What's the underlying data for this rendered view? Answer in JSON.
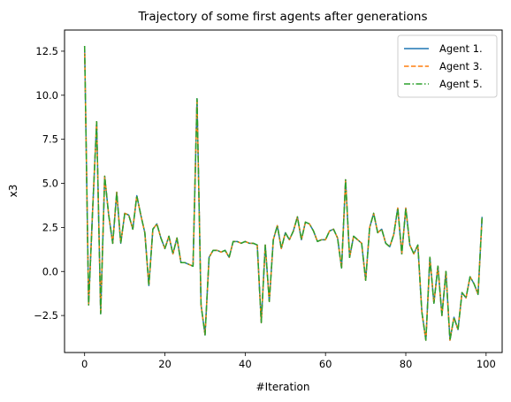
{
  "chart_data": {
    "type": "line",
    "title": "Trajectory of some first agents after generations",
    "xlabel": "#Iteration",
    "ylabel": "x3",
    "xlim": [
      -5,
      104
    ],
    "ylim": [
      -4.6,
      13.7
    ],
    "xticks": [
      0,
      20,
      40,
      60,
      80,
      100
    ],
    "xtick_labels": [
      "0",
      "20",
      "40",
      "60",
      "80",
      "100"
    ],
    "yticks": [
      -2.5,
      0.0,
      2.5,
      5.0,
      7.5,
      10.0,
      12.5
    ],
    "ytick_labels": [
      "−2.5",
      "0.0",
      "2.5",
      "5.0",
      "7.5",
      "10.0",
      "12.5"
    ],
    "grid": false,
    "legend_position": "top-right",
    "x": [
      0,
      1,
      2,
      3,
      4,
      5,
      6,
      7,
      8,
      9,
      10,
      11,
      12,
      13,
      14,
      15,
      16,
      17,
      18,
      19,
      20,
      21,
      22,
      23,
      24,
      25,
      26,
      27,
      28,
      29,
      30,
      31,
      32,
      33,
      34,
      35,
      36,
      37,
      38,
      39,
      40,
      41,
      42,
      43,
      44,
      45,
      46,
      47,
      48,
      49,
      50,
      51,
      52,
      53,
      54,
      55,
      56,
      57,
      58,
      59,
      60,
      61,
      62,
      63,
      64,
      65,
      66,
      67,
      68,
      69,
      70,
      71,
      72,
      73,
      74,
      75,
      76,
      77,
      78,
      79,
      80,
      81,
      82,
      83,
      84,
      85,
      86,
      87,
      88,
      89,
      90,
      91,
      92,
      93,
      94,
      95,
      96,
      97,
      98,
      99
    ],
    "series": [
      {
        "name": "Agent 1.",
        "color": "#1f77b4",
        "dash": "solid",
        "values": [
          12.8,
          -1.9,
          3.5,
          8.5,
          -2.4,
          5.4,
          3.2,
          1.6,
          4.5,
          1.6,
          3.3,
          3.2,
          2.4,
          4.3,
          3.2,
          2.2,
          -0.8,
          2.4,
          2.7,
          1.9,
          1.3,
          2.0,
          1.0,
          1.9,
          0.5,
          0.5,
          0.4,
          0.3,
          9.8,
          -1.9,
          -3.6,
          0.8,
          1.2,
          1.2,
          1.1,
          1.2,
          0.8,
          1.7,
          1.7,
          1.6,
          1.7,
          1.6,
          1.6,
          1.5,
          -2.9,
          1.5,
          -1.7,
          1.8,
          2.6,
          1.3,
          2.2,
          1.8,
          2.3,
          3.1,
          1.8,
          2.8,
          2.7,
          2.3,
          1.7,
          1.8,
          1.8,
          2.3,
          2.4,
          1.9,
          0.2,
          5.2,
          0.8,
          2.0,
          1.8,
          1.6,
          -0.5,
          2.5,
          3.3,
          2.2,
          2.4,
          1.6,
          1.4,
          2.1,
          3.6,
          1.0,
          3.6,
          1.5,
          1.0,
          1.5,
          -2.3,
          -3.9,
          0.8,
          -1.8,
          0.3,
          -2.5,
          0.0,
          -3.9,
          -2.6,
          -3.3,
          -1.2,
          -1.5,
          -0.3,
          -0.7,
          -1.3,
          3.1
        ]
      },
      {
        "name": "Agent 3.",
        "color": "#ff7f0e",
        "dash": "dashed",
        "values": [
          12.8,
          -1.9,
          3.5,
          8.5,
          -2.4,
          5.4,
          3.2,
          1.6,
          4.5,
          1.6,
          3.3,
          3.2,
          2.4,
          4.3,
          3.2,
          2.2,
          -0.8,
          2.4,
          2.7,
          1.9,
          1.3,
          2.0,
          1.0,
          1.9,
          0.5,
          0.5,
          0.4,
          0.3,
          9.8,
          -1.9,
          -3.6,
          0.8,
          1.2,
          1.2,
          1.1,
          1.2,
          0.8,
          1.7,
          1.7,
          1.6,
          1.7,
          1.6,
          1.6,
          1.5,
          -2.9,
          1.5,
          -1.7,
          1.8,
          2.6,
          1.3,
          2.2,
          1.8,
          2.3,
          3.1,
          1.8,
          2.8,
          2.7,
          2.3,
          1.7,
          1.8,
          1.8,
          2.3,
          2.4,
          1.9,
          0.2,
          5.2,
          0.8,
          2.0,
          1.8,
          1.6,
          -0.5,
          2.5,
          3.3,
          2.2,
          2.4,
          1.6,
          1.4,
          2.1,
          3.6,
          1.0,
          3.6,
          1.5,
          1.0,
          1.5,
          -2.3,
          -3.9,
          0.8,
          -1.8,
          0.3,
          -2.5,
          0.0,
          -3.9,
          -2.6,
          -3.3,
          -1.2,
          -1.5,
          -0.3,
          -0.7,
          -1.3,
          3.1
        ]
      },
      {
        "name": "Agent 5.",
        "color": "#2ca02c",
        "dash": "dashdot",
        "values": [
          12.8,
          -1.9,
          3.5,
          8.5,
          -2.4,
          5.4,
          3.2,
          1.6,
          4.5,
          1.6,
          3.3,
          3.2,
          2.4,
          4.3,
          3.2,
          2.2,
          -0.8,
          2.4,
          2.7,
          1.9,
          1.3,
          2.0,
          1.0,
          1.9,
          0.5,
          0.5,
          0.4,
          0.3,
          9.8,
          -1.9,
          -3.6,
          0.8,
          1.2,
          1.2,
          1.1,
          1.2,
          0.8,
          1.7,
          1.7,
          1.6,
          1.7,
          1.6,
          1.6,
          1.5,
          -2.9,
          1.5,
          -1.7,
          1.8,
          2.6,
          1.3,
          2.2,
          1.8,
          2.3,
          3.1,
          1.8,
          2.8,
          2.7,
          2.3,
          1.7,
          1.8,
          1.8,
          2.3,
          2.4,
          1.9,
          0.2,
          5.2,
          0.8,
          2.0,
          1.8,
          1.6,
          -0.5,
          2.5,
          3.3,
          2.2,
          2.4,
          1.6,
          1.4,
          2.1,
          3.6,
          1.0,
          3.6,
          1.5,
          1.0,
          1.5,
          -2.3,
          -3.9,
          0.8,
          -1.8,
          0.3,
          -2.5,
          0.0,
          -3.9,
          -2.6,
          -3.3,
          -1.2,
          -1.5,
          -0.3,
          -0.7,
          -1.3,
          3.1
        ]
      }
    ]
  }
}
